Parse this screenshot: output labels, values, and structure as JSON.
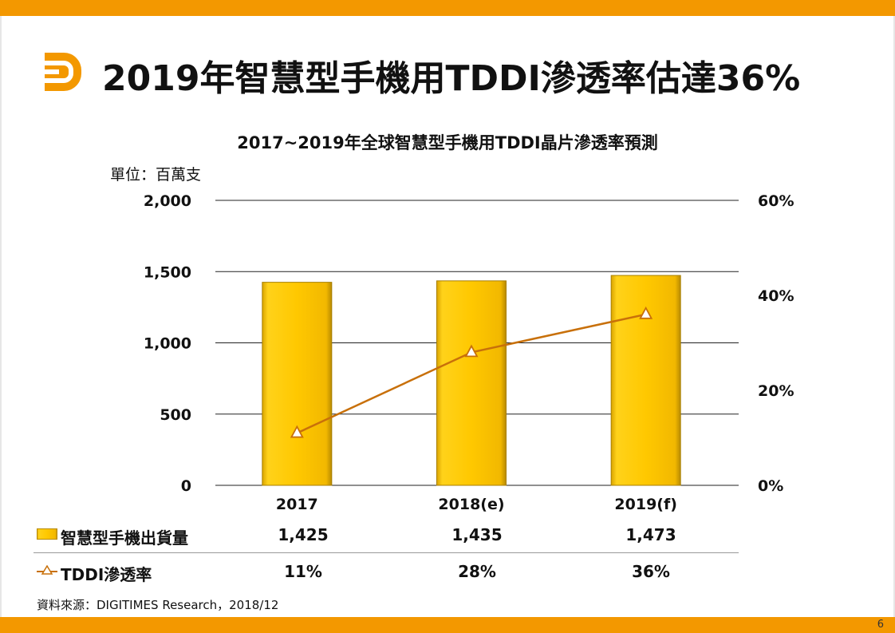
{
  "header": {
    "title": "2019年智慧型手機用TDDI滲透率估達36%"
  },
  "chart_data": {
    "type": "bar",
    "title": "2017~2019年全球智慧型手機用TDDI晶片滲透率預測",
    "unit_label": "單位：百萬支",
    "categories": [
      "2017",
      "2018(e)",
      "2019(f)"
    ],
    "series": [
      {
        "name": "智慧型手機出貨量",
        "type": "bar",
        "axis": "left",
        "values": [
          1425,
          1435,
          1473
        ],
        "display": [
          "1,425",
          "1,435",
          "1,473"
        ],
        "color": "#ffc800"
      },
      {
        "name": "TDDI滲透率",
        "type": "line",
        "axis": "right",
        "values": [
          11,
          28,
          36
        ],
        "display": [
          "11%",
          "28%",
          "36%"
        ],
        "color": "#c8700a"
      }
    ],
    "y_left": {
      "min": 0,
      "max": 2000,
      "ticks": [
        0,
        500,
        1000,
        1500,
        2000
      ],
      "tick_labels": [
        "0",
        "500",
        "1,000",
        "1,500",
        "2,000"
      ]
    },
    "y_right": {
      "min": 0,
      "max": 60,
      "ticks": [
        0,
        20,
        40,
        60
      ],
      "tick_labels": [
        "0%",
        "20%",
        "40%",
        "60%"
      ]
    },
    "grid": true
  },
  "footer": {
    "source": "資料來源：DIGITIMES Research，2018/12",
    "page_number": "6"
  }
}
